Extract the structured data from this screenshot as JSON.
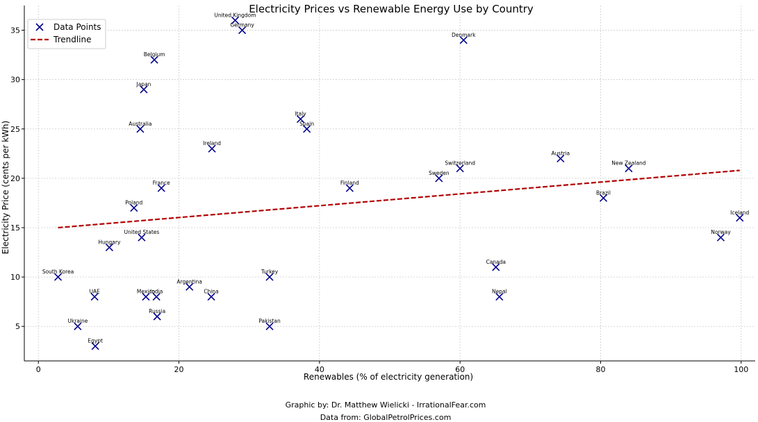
{
  "chart_data": {
    "type": "scatter",
    "title": "Electricity Prices vs Renewable Energy Use by Country",
    "xlabel": "Renewables (% of electricity generation)",
    "ylabel": "Electricity Price (cents per kWh)",
    "xlim": [
      -2,
      102
    ],
    "ylim": [
      1.5,
      37.5
    ],
    "xticks": [
      0,
      20,
      40,
      60,
      80,
      100
    ],
    "yticks": [
      5,
      10,
      15,
      20,
      25,
      30,
      35
    ],
    "grid": true,
    "legend_position": "top-left",
    "legend": {
      "points": "Data Points",
      "trend": "Trendline"
    },
    "colors": {
      "points": "#00008b",
      "trend": "#b30000",
      "grid": "#cccccc"
    },
    "points": [
      {
        "label": "United Kingdom",
        "x": 28,
        "y": 36
      },
      {
        "label": "Germany",
        "x": 29,
        "y": 35
      },
      {
        "label": "Denmark",
        "x": 60.5,
        "y": 34
      },
      {
        "label": "Belgium",
        "x": 16.5,
        "y": 32
      },
      {
        "label": "Japan",
        "x": 15,
        "y": 29
      },
      {
        "label": "Australia",
        "x": 14.5,
        "y": 25
      },
      {
        "label": "Italy",
        "x": 37.3,
        "y": 26
      },
      {
        "label": "Spain",
        "x": 38.2,
        "y": 25
      },
      {
        "label": "Ireland",
        "x": 24.7,
        "y": 23
      },
      {
        "label": "Austria",
        "x": 74.3,
        "y": 22
      },
      {
        "label": "Switzerland",
        "x": 60,
        "y": 21
      },
      {
        "label": "New Zealand",
        "x": 84,
        "y": 21
      },
      {
        "label": "Sweden",
        "x": 57,
        "y": 20
      },
      {
        "label": "France",
        "x": 17.5,
        "y": 19
      },
      {
        "label": "Finland",
        "x": 44.3,
        "y": 19
      },
      {
        "label": "Brazil",
        "x": 80.4,
        "y": 18
      },
      {
        "label": "Poland",
        "x": 13.6,
        "y": 17
      },
      {
        "label": "Iceland",
        "x": 99.8,
        "y": 16
      },
      {
        "label": "United States",
        "x": 14.7,
        "y": 14
      },
      {
        "label": "Norway",
        "x": 97.1,
        "y": 14
      },
      {
        "label": "Hungary",
        "x": 10.1,
        "y": 13
      },
      {
        "label": "South Korea",
        "x": 2.8,
        "y": 10
      },
      {
        "label": "Turkey",
        "x": 32.9,
        "y": 10
      },
      {
        "label": "Canada",
        "x": 65.1,
        "y": 11
      },
      {
        "label": "Argentina",
        "x": 21.5,
        "y": 9
      },
      {
        "label": "UAE",
        "x": 8,
        "y": 8
      },
      {
        "label": "Mexico",
        "x": 15.3,
        "y": 8
      },
      {
        "label": "India",
        "x": 16.8,
        "y": 8
      },
      {
        "label": "China",
        "x": 24.6,
        "y": 8
      },
      {
        "label": "Nepal",
        "x": 65.6,
        "y": 8
      },
      {
        "label": "Russia",
        "x": 16.9,
        "y": 6
      },
      {
        "label": "Ukraine",
        "x": 5.6,
        "y": 5
      },
      {
        "label": "Pakistan",
        "x": 32.9,
        "y": 5
      },
      {
        "label": "Egypt",
        "x": 8.1,
        "y": 3
      }
    ],
    "trendline": {
      "x": [
        2.8,
        99.8
      ],
      "y": [
        15.0,
        20.8
      ]
    }
  },
  "credits": {
    "graphic": "Graphic by: Dr. Matthew Wielicki - IrrationalFear.com",
    "data": "Data from: GlobalPetrolPrices.com"
  }
}
